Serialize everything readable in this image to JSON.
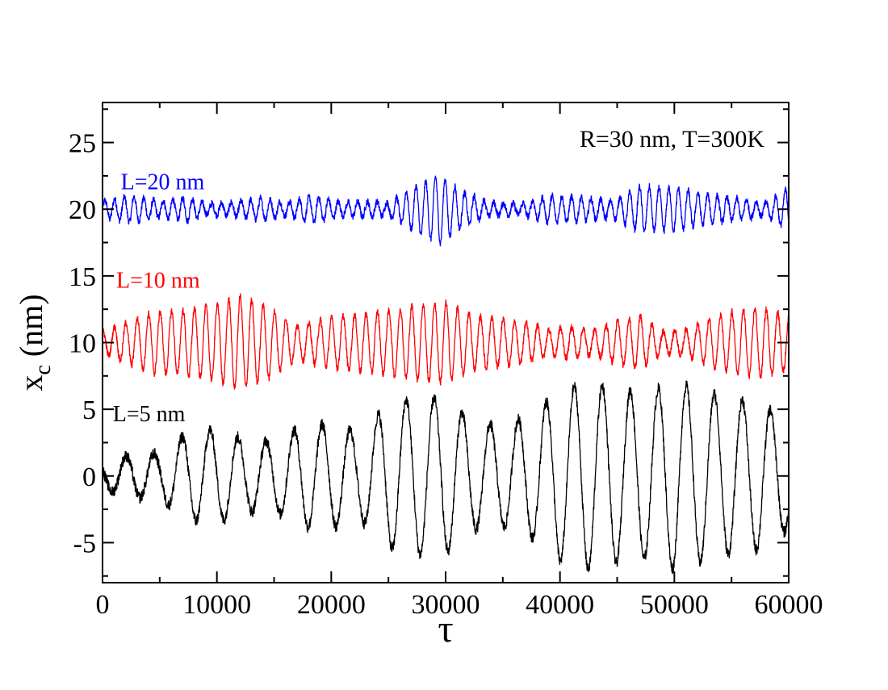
{
  "chart_data": {
    "type": "line",
    "annotation": "R=30 nm,  T=300K",
    "xlabel": "τ",
    "ylabel_main": "x",
    "ylabel_sub": "c",
    "ylabel_unit": " (nm)",
    "xlim": [
      0,
      60000
    ],
    "ylim": [
      -8,
      28
    ],
    "xticks": [
      0,
      10000,
      20000,
      30000,
      40000,
      50000,
      60000
    ],
    "xtick_labels": [
      "0",
      "10000",
      "20000",
      "30000",
      "40000",
      "50000",
      "60000"
    ],
    "yticks": [
      -5,
      0,
      5,
      10,
      15,
      20,
      25
    ],
    "ytick_labels": [
      "-5",
      "0",
      "5",
      "10",
      "15",
      "20",
      "25"
    ],
    "series": [
      {
        "name": "L=20 nm",
        "color": "#0000ff",
        "offset": 20,
        "period": 850,
        "amplitude_envelope": [
          [
            0,
            0.6
          ],
          [
            2500,
            1.0
          ],
          [
            5000,
            0.6
          ],
          [
            7500,
            0.9
          ],
          [
            9000,
            0.4
          ],
          [
            11000,
            0.5
          ],
          [
            14000,
            0.8
          ],
          [
            16000,
            0.5
          ],
          [
            18500,
            1.0
          ],
          [
            21000,
            0.5
          ],
          [
            23000,
            0.6
          ],
          [
            25000,
            0.5
          ],
          [
            27500,
            1.8
          ],
          [
            29500,
            2.6
          ],
          [
            31500,
            1.3
          ],
          [
            34000,
            0.5
          ],
          [
            36500,
            0.4
          ],
          [
            39000,
            1.0
          ],
          [
            42000,
            0.9
          ],
          [
            44500,
            0.6
          ],
          [
            47000,
            1.7
          ],
          [
            50000,
            1.6
          ],
          [
            53000,
            1.1
          ],
          [
            55500,
            0.8
          ],
          [
            58000,
            0.5
          ],
          [
            60000,
            1.6
          ]
        ]
      },
      {
        "name": "L=10 nm",
        "color": "#ff0000",
        "offset": 10,
        "period": 1000,
        "amplitude_envelope": [
          [
            0,
            0.8
          ],
          [
            2000,
            1.5
          ],
          [
            4500,
            2.3
          ],
          [
            7000,
            2.4
          ],
          [
            9500,
            2.8
          ],
          [
            12000,
            3.5
          ],
          [
            14500,
            2.7
          ],
          [
            17000,
            1.2
          ],
          [
            19500,
            1.8
          ],
          [
            22000,
            2.1
          ],
          [
            25000,
            2.4
          ],
          [
            27500,
            2.8
          ],
          [
            30000,
            3.0
          ],
          [
            32500,
            2.0
          ],
          [
            35000,
            1.8
          ],
          [
            37500,
            1.4
          ],
          [
            39000,
            1.0
          ],
          [
            41000,
            1.2
          ],
          [
            43000,
            0.9
          ],
          [
            45000,
            1.6
          ],
          [
            47000,
            2.0
          ],
          [
            49000,
            0.8
          ],
          [
            51000,
            1.0
          ],
          [
            53000,
            1.7
          ],
          [
            55000,
            2.3
          ],
          [
            57500,
            2.6
          ],
          [
            60000,
            2.0
          ]
        ]
      },
      {
        "name": "L=5 nm",
        "color": "#000000",
        "offset": 0,
        "period": 2450,
        "amplitude_envelope": [
          [
            0,
            1.0
          ],
          [
            2500,
            1.6
          ],
          [
            5000,
            1.7
          ],
          [
            7500,
            3.3
          ],
          [
            10000,
            3.5
          ],
          [
            12500,
            2.7
          ],
          [
            15000,
            2.6
          ],
          [
            17500,
            3.8
          ],
          [
            20000,
            3.9
          ],
          [
            22500,
            3.2
          ],
          [
            25000,
            5.4
          ],
          [
            27500,
            5.9
          ],
          [
            30000,
            5.8
          ],
          [
            32500,
            4.0
          ],
          [
            35000,
            3.8
          ],
          [
            37500,
            4.6
          ],
          [
            40000,
            6.4
          ],
          [
            42500,
            7.0
          ],
          [
            45000,
            6.5
          ],
          [
            47500,
            6.2
          ],
          [
            50000,
            7.0
          ],
          [
            52500,
            6.4
          ],
          [
            55000,
            5.8
          ],
          [
            57500,
            5.5
          ],
          [
            60000,
            4.0
          ]
        ]
      }
    ]
  }
}
